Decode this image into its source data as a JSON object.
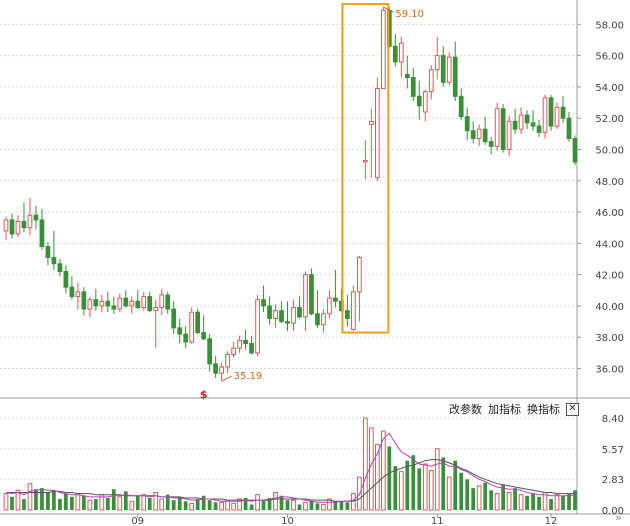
{
  "toolbar": {
    "change_params": "改参数",
    "add_indicator": "加指标",
    "switch_indicator": "换指标",
    "close": "✕"
  },
  "nav": {
    "scroll_right": "»"
  },
  "colors": {
    "up": "#e0585b",
    "down": "#3a8f3a",
    "ma_volume_fast": "#c040c0",
    "ma_volume_slow": "#555555",
    "highlight_box": "#f0a020",
    "annotation": "#d26a1e"
  },
  "icons": {
    "marker": "dollar-marker-icon",
    "close": "close-icon",
    "scroll": "double-chevron-right-icon"
  },
  "chart_data": {
    "type": "candlestick",
    "price_axis": {
      "ticks": [
        "58.00",
        "56.00",
        "54.00",
        "52.00",
        "50.00",
        "48.00",
        "46.00",
        "44.00",
        "42.00",
        "40.00",
        "38.00",
        "36.00"
      ],
      "range": [
        34.5,
        59.3
      ]
    },
    "volume_axis": {
      "ticks": [
        "8.40",
        "5.57",
        "2.83",
        "0.00"
      ],
      "range": [
        0,
        8.4
      ]
    },
    "x_labels": [
      "09",
      "10",
      "11",
      "12"
    ],
    "annotations": {
      "high": "59.10",
      "low": "35.19",
      "marker": "$"
    },
    "candles": [
      [
        44.8,
        45.7,
        44.2,
        45.5
      ],
      [
        45.5,
        45.9,
        44.3,
        44.6
      ],
      [
        44.6,
        45.8,
        44.4,
        45.4
      ],
      [
        45.4,
        46.6,
        44.7,
        45.0
      ],
      [
        45.0,
        46.9,
        44.5,
        45.8
      ],
      [
        45.8,
        46.4,
        44.9,
        45.5
      ],
      [
        45.5,
        46.2,
        43.6,
        43.8
      ],
      [
        43.8,
        44.1,
        42.6,
        43.1
      ],
      [
        43.1,
        44.8,
        42.3,
        42.7
      ],
      [
        42.7,
        43.0,
        41.9,
        42.2
      ],
      [
        42.2,
        42.6,
        40.8,
        41.2
      ],
      [
        41.2,
        41.9,
        40.4,
        40.6
      ],
      [
        40.6,
        41.5,
        39.8,
        40.9
      ],
      [
        40.9,
        41.2,
        39.4,
        39.8
      ],
      [
        39.8,
        40.6,
        39.3,
        40.4
      ],
      [
        40.4,
        41.1,
        39.7,
        40.0
      ],
      [
        40.0,
        40.7,
        39.6,
        40.3
      ],
      [
        40.3,
        40.9,
        39.6,
        40.0
      ],
      [
        40.0,
        40.6,
        39.5,
        39.8
      ],
      [
        39.8,
        40.8,
        39.6,
        40.5
      ],
      [
        40.5,
        41.0,
        39.9,
        40.0
      ],
      [
        40.0,
        40.6,
        39.5,
        40.3
      ],
      [
        40.3,
        41.0,
        39.8,
        39.9
      ],
      [
        39.9,
        40.9,
        39.7,
        40.6
      ],
      [
        40.6,
        40.9,
        39.6,
        39.7
      ],
      [
        39.7,
        40.4,
        37.3,
        39.9
      ],
      [
        39.9,
        41.1,
        39.4,
        40.7
      ],
      [
        40.7,
        40.9,
        39.5,
        39.8
      ],
      [
        39.8,
        40.3,
        38.2,
        38.6
      ],
      [
        38.6,
        39.2,
        37.6,
        38.2
      ],
      [
        38.2,
        38.7,
        37.3,
        37.7
      ],
      [
        37.7,
        39.9,
        37.6,
        39.6
      ],
      [
        39.6,
        39.8,
        38.2,
        38.3
      ],
      [
        38.3,
        39.4,
        37.8,
        37.9
      ],
      [
        37.9,
        38.2,
        35.8,
        36.3
      ],
      [
        36.3,
        36.8,
        35.4,
        35.7
      ],
      [
        35.7,
        36.4,
        35.19,
        36.1
      ],
      [
        36.1,
        37.1,
        35.7,
        36.9
      ],
      [
        36.9,
        37.7,
        36.7,
        37.3
      ],
      [
        37.3,
        38.1,
        37.0,
        37.8
      ],
      [
        37.8,
        38.5,
        37.2,
        37.6
      ],
      [
        37.6,
        38.1,
        36.9,
        37.0
      ],
      [
        37.0,
        40.7,
        36.8,
        40.4
      ],
      [
        40.4,
        41.3,
        39.6,
        40.0
      ],
      [
        40.0,
        40.6,
        38.8,
        39.2
      ],
      [
        39.2,
        40.1,
        38.6,
        39.7
      ],
      [
        39.7,
        40.3,
        38.9,
        39.0
      ],
      [
        39.0,
        40.3,
        38.4,
        38.9
      ],
      [
        38.9,
        40.4,
        38.4,
        39.9
      ],
      [
        39.9,
        40.6,
        39.2,
        39.3
      ],
      [
        39.3,
        42.2,
        38.4,
        42.0
      ],
      [
        42.0,
        42.4,
        39.4,
        39.5
      ],
      [
        39.5,
        41.0,
        38.6,
        38.8
      ],
      [
        38.8,
        39.8,
        38.3,
        39.5
      ],
      [
        39.5,
        41.0,
        39.2,
        40.5
      ],
      [
        40.5,
        42.3,
        39.9,
        40.3
      ],
      [
        40.3,
        41.1,
        39.6,
        39.7
      ],
      [
        39.7,
        40.7,
        38.7,
        39.2
      ],
      [
        38.5,
        41.3,
        38.4,
        40.9
      ],
      [
        40.9,
        43.2,
        39.0,
        43.1
      ],
      [
        49.2,
        50.6,
        48.1,
        49.3
      ],
      [
        51.6,
        52.6,
        48.2,
        51.8
      ],
      [
        48.2,
        54.6,
        48.0,
        53.9
      ],
      [
        53.9,
        59.1,
        53.9,
        58.9
      ],
      [
        58.9,
        59.1,
        56.5,
        56.6
      ],
      [
        56.6,
        57.4,
        55.3,
        55.6
      ],
      [
        55.6,
        57.2,
        54.6,
        56.8
      ],
      [
        54.8,
        56.0,
        53.9,
        54.6
      ],
      [
        54.6,
        55.2,
        53.1,
        53.4
      ],
      [
        53.4,
        54.4,
        51.9,
        52.8
      ],
      [
        52.4,
        53.8,
        51.8,
        53.7
      ],
      [
        53.7,
        55.4,
        53.2,
        55.1
      ],
      [
        55.1,
        57.2,
        54.5,
        56.0
      ],
      [
        56.0,
        56.6,
        54.0,
        54.3
      ],
      [
        54.3,
        56.2,
        54.1,
        55.9
      ],
      [
        55.9,
        56.9,
        53.1,
        53.4
      ],
      [
        53.4,
        53.9,
        51.9,
        52.1
      ],
      [
        52.1,
        52.7,
        50.6,
        51.2
      ],
      [
        51.2,
        51.8,
        50.4,
        50.7
      ],
      [
        50.7,
        51.6,
        50.2,
        51.3
      ],
      [
        51.3,
        52.1,
        50.3,
        50.5
      ],
      [
        50.5,
        50.8,
        49.7,
        50.2
      ],
      [
        50.2,
        53.0,
        49.9,
        52.6
      ],
      [
        52.6,
        52.9,
        49.8,
        50.0
      ],
      [
        50.0,
        52.2,
        49.6,
        51.8
      ],
      [
        51.8,
        52.6,
        51.0,
        51.3
      ],
      [
        51.3,
        52.7,
        51.0,
        52.2
      ],
      [
        52.2,
        52.5,
        51.3,
        51.7
      ],
      [
        51.7,
        52.5,
        51.2,
        51.5
      ],
      [
        51.5,
        51.9,
        50.8,
        51.1
      ],
      [
        51.1,
        53.5,
        50.7,
        53.3
      ],
      [
        53.3,
        53.5,
        51.2,
        51.5
      ],
      [
        51.5,
        53.0,
        51.3,
        52.7
      ],
      [
        52.7,
        53.4,
        51.7,
        52.0
      ],
      [
        52.0,
        52.4,
        50.5,
        50.7
      ],
      [
        50.7,
        50.9,
        49.0,
        49.2
      ]
    ],
    "volume": [
      1.5,
      1.2,
      1.8,
      1.0,
      2.4,
      1.9,
      2.0,
      1.6,
      1.8,
      1.0,
      1.5,
      1.2,
      1.5,
      1.3,
      0.9,
      1.0,
      1.4,
      1.1,
      1.9,
      1.2,
      1.7,
      0.8,
      1.3,
      1.4,
      1.1,
      1.6,
      1.0,
      1.4,
      0.9,
      1.2,
      0.8,
      0.6,
      1.0,
      1.3,
      0.9,
      0.7,
      0.7,
      0.9,
      0.6,
      1.0,
      1.1,
      0.5,
      1.4,
      0.9,
      1.1,
      1.6,
      1.3,
      0.9,
      0.9,
      0.5,
      0.7,
      0.8,
      0.6,
      0.5,
      1.0,
      0.8,
      0.8,
      0.7,
      1.5,
      3.0,
      8.4,
      7.5,
      6.0,
      7.2,
      5.8,
      4.0,
      3.5,
      4.5,
      5.0,
      3.8,
      4.2,
      3.6,
      5.6,
      4.8,
      3.0,
      4.5,
      3.4,
      2.8,
      2.0,
      2.2,
      2.5,
      1.8,
      1.5,
      2.3,
      1.6,
      2.0,
      1.4,
      1.3,
      1.5,
      1.2,
      1.6,
      1.0,
      1.4,
      1.3,
      1.5,
      1.8
    ],
    "volume_ma_fast": [
      1.6,
      1.5,
      1.6,
      1.4,
      1.7,
      1.8,
      1.9,
      1.8,
      1.8,
      1.6,
      1.5,
      1.4,
      1.4,
      1.3,
      1.2,
      1.2,
      1.2,
      1.2,
      1.3,
      1.3,
      1.4,
      1.3,
      1.3,
      1.3,
      1.2,
      1.3,
      1.2,
      1.2,
      1.1,
      1.1,
      1.0,
      0.9,
      0.9,
      1.0,
      1.0,
      0.9,
      0.8,
      0.8,
      0.8,
      0.8,
      0.9,
      0.8,
      0.9,
      0.9,
      1.0,
      1.1,
      1.2,
      1.2,
      1.1,
      1.0,
      0.9,
      0.8,
      0.7,
      0.7,
      0.7,
      0.7,
      0.8,
      0.8,
      0.9,
      1.4,
      2.9,
      4.2,
      5.1,
      6.5,
      7.0,
      6.1,
      5.3,
      5.0,
      4.6,
      4.2,
      4.1,
      4.0,
      4.2,
      4.3,
      4.0,
      4.0,
      3.7,
      3.5,
      3.1,
      2.8,
      2.6,
      2.3,
      2.1,
      2.0,
      1.9,
      1.9,
      1.8,
      1.6,
      1.5,
      1.4,
      1.4,
      1.3,
      1.3,
      1.3,
      1.3,
      1.4
    ],
    "volume_ma_slow": [
      1.6,
      1.6,
      1.6,
      1.6,
      1.6,
      1.6,
      1.6,
      1.6,
      1.7,
      1.7,
      1.6,
      1.6,
      1.5,
      1.5,
      1.5,
      1.4,
      1.4,
      1.4,
      1.4,
      1.4,
      1.3,
      1.3,
      1.3,
      1.3,
      1.3,
      1.3,
      1.2,
      1.2,
      1.2,
      1.2,
      1.1,
      1.1,
      1.1,
      1.0,
      1.0,
      1.0,
      1.0,
      0.9,
      0.9,
      0.9,
      0.9,
      0.9,
      0.9,
      0.9,
      0.9,
      1.0,
      1.0,
      1.0,
      1.0,
      1.0,
      1.0,
      0.9,
      0.9,
      0.9,
      0.9,
      0.8,
      0.8,
      0.8,
      0.8,
      1.0,
      1.5,
      2.0,
      2.5,
      3.0,
      3.4,
      3.6,
      3.8,
      4.0,
      4.1,
      4.3,
      4.5,
      4.6,
      4.6,
      4.5,
      4.3,
      4.1,
      3.8,
      3.6,
      3.3,
      3.0,
      2.8,
      2.6,
      2.4,
      2.3,
      2.2,
      2.1,
      2.0,
      1.9,
      1.8,
      1.7,
      1.6,
      1.6,
      1.5,
      1.5,
      1.5,
      1.5
    ],
    "label_positions": {
      "09": 22,
      "10": 47,
      "11": 72,
      "12": 91
    },
    "highlight_range": [
      57,
      63
    ]
  }
}
